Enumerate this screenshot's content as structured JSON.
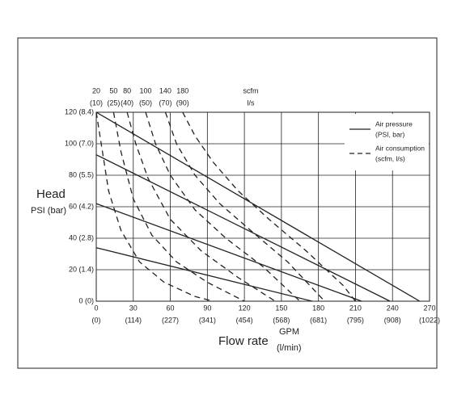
{
  "chart_data": {
    "type": "pump-curve",
    "y_label": "Head",
    "y_unit": "PSI (bar)",
    "x_label": "Flow rate",
    "x_unit": "GPM",
    "x_unit2": "(l/min)",
    "top_unit": "scfm",
    "top_unit2": "l/s",
    "xlim": [
      0,
      270
    ],
    "ylim": [
      0,
      120
    ],
    "xticks": [
      0,
      30,
      60,
      90,
      120,
      150,
      180,
      210,
      240,
      270
    ],
    "xticks_lpm": [
      "(0)",
      "(114)",
      "(227)",
      "(341)",
      "(454)",
      "(568)",
      "(681)",
      "(795)",
      "(908)",
      "(1022)"
    ],
    "yticks": [
      {
        "value": 0,
        "label": "0 (0)"
      },
      {
        "value": 20,
        "label": "20 (1.4)"
      },
      {
        "value": 40,
        "label": "40 (2.8)"
      },
      {
        "value": 60,
        "label": "60 (4.2)"
      },
      {
        "value": 80,
        "label": "80 (5.5)"
      },
      {
        "value": 100,
        "label": "100 (7.0)"
      },
      {
        "value": 120,
        "label": "120 (8.4)"
      }
    ],
    "grid": true,
    "legend": [
      {
        "label": "Air pressure",
        "sub": "(PSI, bar)",
        "dashed": false
      },
      {
        "label": "Air consumption",
        "sub": "(scfm, l/s)",
        "dashed": true
      }
    ],
    "pressure_curves": [
      {
        "x": [
          0,
          262
        ],
        "y": [
          120,
          0
        ]
      },
      {
        "x": [
          0,
          238
        ],
        "y": [
          93,
          0
        ]
      },
      {
        "x": [
          0,
          215
        ],
        "y": [
          62,
          0
        ]
      },
      {
        "x": [
          0,
          175
        ],
        "y": [
          34,
          0
        ]
      }
    ],
    "consumption_curves": [
      {
        "scfm": "20",
        "ls": "(10)",
        "x": [
          0,
          10,
          20,
          35,
          55,
          80,
          95
        ],
        "y": [
          120,
          70,
          45,
          25,
          12,
          3,
          0
        ]
      },
      {
        "scfm": "50",
        "ls": "(25)",
        "x": [
          14,
          20,
          30,
          45,
          65,
          90,
          120
        ],
        "y": [
          120,
          95,
          65,
          42,
          25,
          12,
          0
        ]
      },
      {
        "scfm": "80",
        "ls": "(40)",
        "x": [
          25,
          32,
          42,
          60,
          85,
          115,
          145
        ],
        "y": [
          120,
          100,
          78,
          52,
          32,
          15,
          0
        ]
      },
      {
        "scfm": "100",
        "ls": "(50)",
        "x": [
          40,
          48,
          60,
          80,
          105,
          135,
          165
        ],
        "y": [
          120,
          100,
          80,
          58,
          40,
          22,
          0
        ]
      },
      {
        "scfm": "140",
        "ls": "(70)",
        "x": [
          56,
          65,
          80,
          100,
          125,
          155,
          185
        ],
        "y": [
          120,
          100,
          80,
          62,
          45,
          25,
          0
        ]
      },
      {
        "scfm": "180",
        "ls": "(90)",
        "x": [
          70,
          80,
          95,
          115,
          140,
          170,
          200,
          210
        ],
        "y": [
          120,
          105,
          88,
          70,
          52,
          32,
          10,
          0
        ]
      }
    ]
  }
}
